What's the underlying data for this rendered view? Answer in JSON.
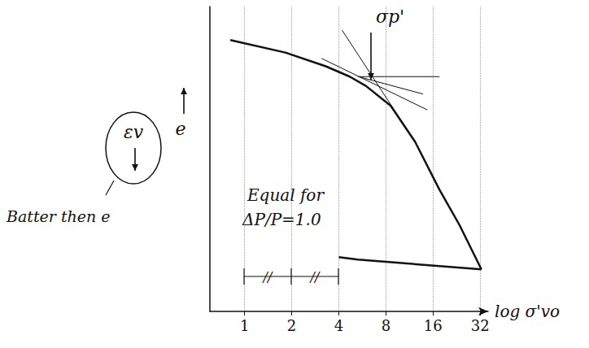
{
  "chart_data": {
    "type": "line",
    "x_label": "log σ'vo",
    "y_label": "e",
    "log": "x",
    "grid": true,
    "tick_labels": "x",
    "xlim": [
      0.6,
      36
    ],
    "xticks": [
      1,
      2,
      4,
      8,
      16,
      32
    ],
    "ylim": [
      0,
      10
    ],
    "series": [
      {
        "x": [
          0.81,
          1.82,
          3.3,
          4.7,
          5.98,
          8.6,
          12.3,
          17.6,
          23.7,
          32.6
        ],
        "values": [
          8.9,
          8.49,
          8.04,
          7.7,
          7.39,
          6.74,
          5.56,
          3.99,
          2.82,
          1.38
        ],
        "line_style": "solid"
      },
      {
        "x": [
          32.6,
          5.3,
          4.0
        ],
        "values": [
          1.38,
          1.7,
          1.78
        ],
        "line_style": "solid"
      },
      {
        "x": [
          5.33,
          17.6
        ],
        "values": [
          7.7,
          7.7
        ],
        "line_style": "thin"
      },
      {
        "x": [
          3.1,
          14.7
        ],
        "values": [
          8.3,
          6.61
        ],
        "line_style": "thin"
      },
      {
        "x": [
          5.33,
          13.8
        ],
        "values": [
          7.7,
          7.13
        ],
        "line_style": "thin"
      },
      {
        "x": [
          4.2,
          12.3
        ],
        "values": [
          9.22,
          5.56
        ],
        "line_style": "thin"
      }
    ],
    "annotations": [
      {
        "text": "σp'"
      },
      {
        "text": "εv"
      },
      {
        "text": "Batter then e"
      },
      {
        "text": "Equal for"
      },
      {
        "text": "ΔP/P=1.0"
      },
      {
        "text": "//"
      },
      {
        "text": "//"
      }
    ]
  }
}
